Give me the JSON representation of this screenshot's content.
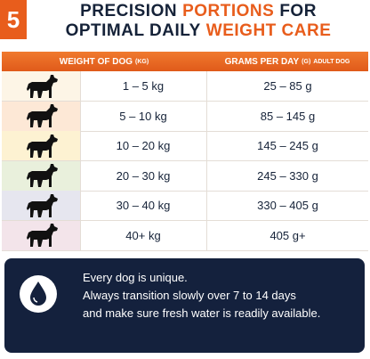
{
  "badge": "5",
  "title": {
    "line1": [
      "PRECISION",
      "PORTIONS",
      "FOR"
    ],
    "line2": [
      "OPTIMAL DAILY",
      "WEIGHT CARE"
    ]
  },
  "table": {
    "header": [
      {
        "main": "WEIGHT OF DOG",
        "small": "(KG)"
      },
      {
        "main": "GRAMS PER DAY",
        "small": "(G)",
        "note": "ADULT DOG"
      }
    ],
    "rows": [
      [
        "1 – 5 kg",
        "25 – 85 g"
      ],
      [
        "5 – 10 kg",
        "85 – 145 g"
      ],
      [
        "10 – 20 kg",
        "145 – 245 g"
      ],
      [
        "20 – 30 kg",
        "245 – 330 g"
      ],
      [
        "30 – 40 kg",
        "330 – 405 g"
      ],
      [
        "40+ kg",
        "405 g+"
      ]
    ]
  },
  "note": {
    "lines": [
      "Every dog is unique.",
      "Always transition slowly over 7 to 14 days",
      "and make sure fresh water is readily available."
    ]
  }
}
